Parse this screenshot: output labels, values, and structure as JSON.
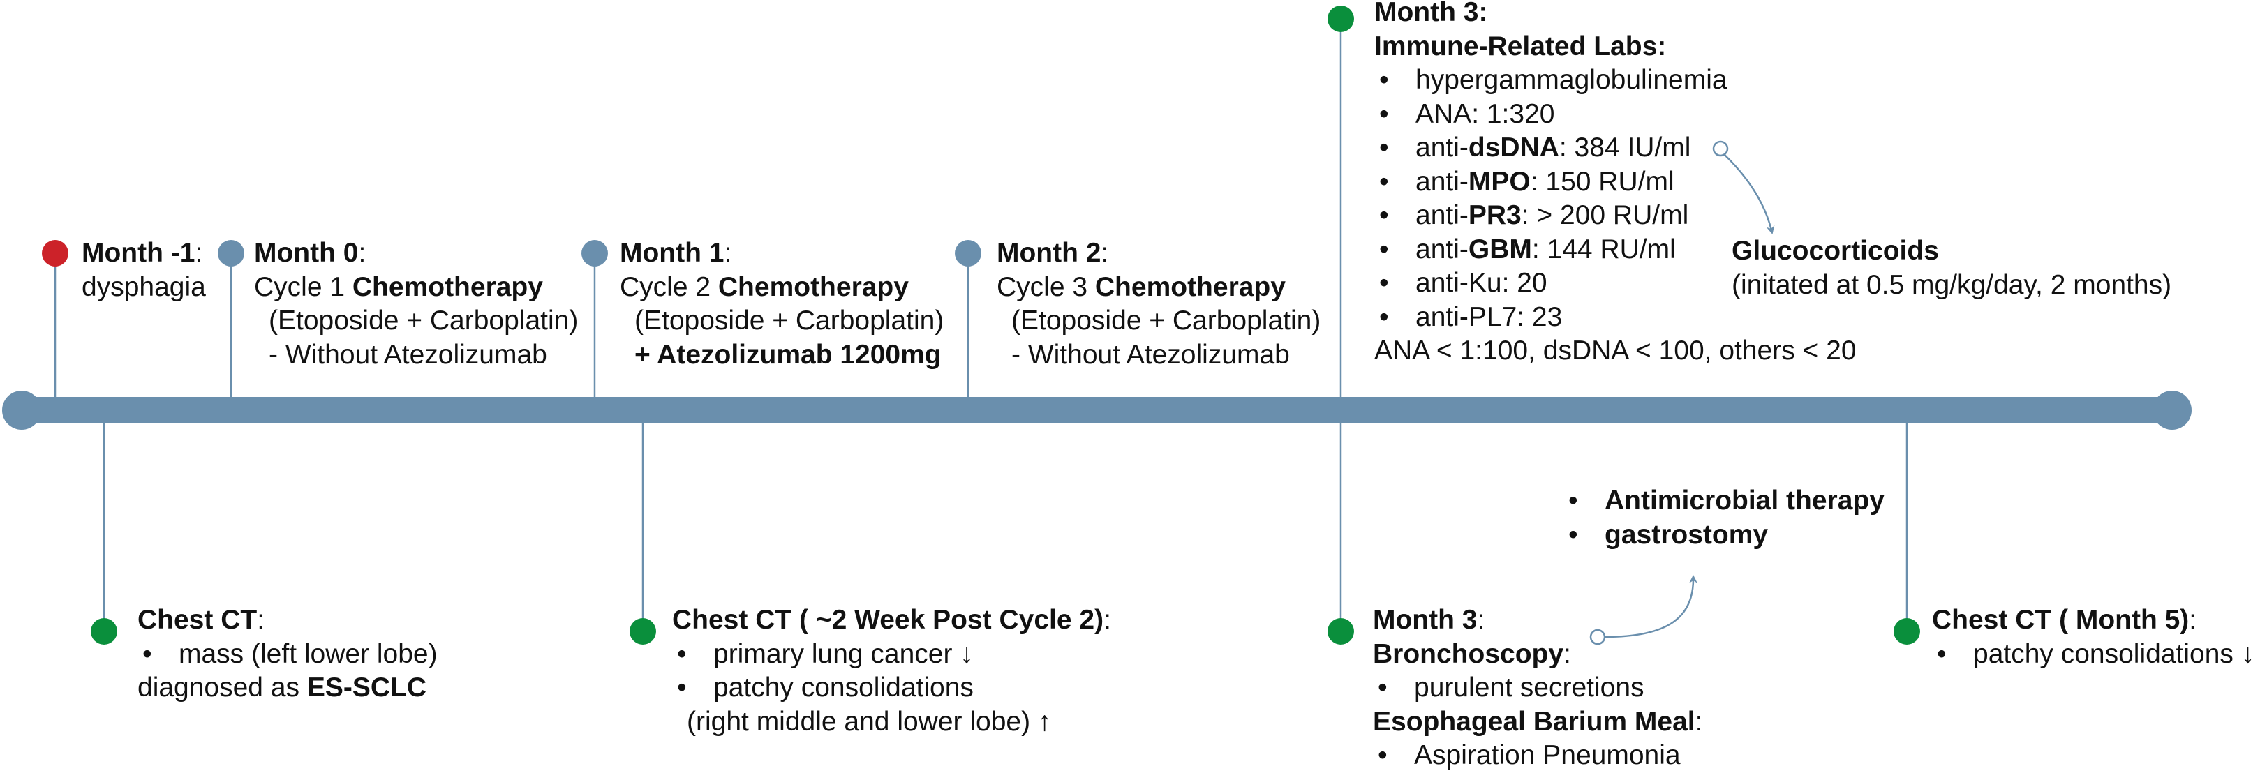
{
  "colors": {
    "timeline": "#6a8fad",
    "marker_red": "#cc2229",
    "marker_blue": "#6a8fad",
    "marker_green": "#0a8f3c",
    "text": "#111111"
  },
  "events": [
    {
      "id": "month-minus-1",
      "side": "top",
      "marker": "red",
      "lines": [
        {
          "segs": [
            [
              "Month -1",
              true
            ],
            [
              ":",
              false
            ]
          ]
        },
        {
          "segs": [
            [
              "dysphagia",
              false
            ]
          ]
        }
      ]
    },
    {
      "id": "month-0",
      "side": "top",
      "marker": "blue",
      "lines": [
        {
          "segs": [
            [
              "Month 0",
              true
            ],
            [
              ":",
              false
            ]
          ]
        },
        {
          "segs": [
            [
              "Cycle 1 ",
              false
            ],
            [
              "Chemotherapy",
              true
            ]
          ]
        },
        {
          "indent": true,
          "segs": [
            [
              "(Etoposide + Carboplatin)",
              false
            ]
          ]
        },
        {
          "indent": true,
          "segs": [
            [
              "- Without Atezolizumab",
              false
            ]
          ]
        }
      ]
    },
    {
      "id": "month-1",
      "side": "top",
      "marker": "blue",
      "lines": [
        {
          "segs": [
            [
              "Month 1",
              true
            ],
            [
              ":",
              false
            ]
          ]
        },
        {
          "segs": [
            [
              "Cycle 2 ",
              false
            ],
            [
              "Chemotherapy",
              true
            ]
          ]
        },
        {
          "indent": true,
          "segs": [
            [
              "(Etoposide + Carboplatin)",
              false
            ]
          ]
        },
        {
          "indent": true,
          "segs": [
            [
              "+ Atezolizumab 1200mg",
              true
            ]
          ]
        }
      ]
    },
    {
      "id": "month-2",
      "side": "top",
      "marker": "blue",
      "lines": [
        {
          "segs": [
            [
              "Month 2",
              true
            ],
            [
              ":",
              false
            ]
          ]
        },
        {
          "segs": [
            [
              "Cycle 3 ",
              false
            ],
            [
              "Chemotherapy",
              true
            ]
          ]
        },
        {
          "indent": true,
          "segs": [
            [
              "(Etoposide + Carboplatin)",
              false
            ]
          ]
        },
        {
          "indent": true,
          "segs": [
            [
              "- Without Atezolizumab",
              false
            ]
          ]
        }
      ]
    },
    {
      "id": "month-3-labs",
      "side": "top",
      "marker": "green",
      "lines": [
        {
          "segs": [
            [
              "Month 3:",
              true
            ]
          ]
        },
        {
          "segs": [
            [
              "Immune-Related Labs:",
              true
            ]
          ]
        },
        {
          "bullet": true,
          "segs": [
            [
              "hypergammaglobulinemia",
              false
            ]
          ]
        },
        {
          "bullet": true,
          "segs": [
            [
              "ANA: 1:320",
              false
            ]
          ]
        },
        {
          "bullet": true,
          "segs": [
            [
              "anti-",
              false
            ],
            [
              "dsDNA",
              true
            ],
            [
              ": 384 IU/ml",
              false
            ]
          ]
        },
        {
          "bullet": true,
          "segs": [
            [
              "anti-",
              false
            ],
            [
              "MPO",
              true
            ],
            [
              ": 150 RU/ml",
              false
            ]
          ]
        },
        {
          "bullet": true,
          "segs": [
            [
              "anti-",
              false
            ],
            [
              "PR3",
              true
            ],
            [
              ": > 200 RU/ml",
              false
            ]
          ]
        },
        {
          "bullet": true,
          "segs": [
            [
              "anti-",
              false
            ],
            [
              "GBM",
              true
            ],
            [
              ":  144 RU/ml",
              false
            ]
          ]
        },
        {
          "bullet": true,
          "segs": [
            [
              "anti-Ku: 20",
              false
            ]
          ]
        },
        {
          "bullet": true,
          "segs": [
            [
              "anti-PL7: 23",
              false
            ]
          ]
        },
        {
          "segs": [
            [
              "ANA < 1:100, dsDNA < 100, others < 20",
              false
            ]
          ]
        }
      ]
    },
    {
      "id": "chest-ct-initial",
      "side": "bottom",
      "marker": "green",
      "lines": [
        {
          "segs": [
            [
              "Chest CT",
              true
            ],
            [
              ":",
              false
            ]
          ]
        },
        {
          "bullet": true,
          "segs": [
            [
              "mass (left lower lobe)",
              false
            ]
          ]
        },
        {
          "segs": [
            [
              "diagnosed as ",
              false
            ],
            [
              "ES-SCLC",
              true
            ]
          ]
        }
      ]
    },
    {
      "id": "chest-ct-post-cycle-2",
      "side": "bottom",
      "marker": "green",
      "lines": [
        {
          "segs": [
            [
              "Chest CT ( ~2 Week Post Cycle 2)",
              true
            ],
            [
              ":",
              false
            ]
          ]
        },
        {
          "bullet": true,
          "segs": [
            [
              "primary lung cancer ↓",
              false
            ]
          ]
        },
        {
          "bullet": true,
          "segs": [
            [
              "patchy consolidations",
              false
            ]
          ]
        },
        {
          "indent": true,
          "segs": [
            [
              "(right middle and lower lobe) ↑",
              false
            ]
          ]
        }
      ]
    },
    {
      "id": "month-3-bronchoscopy",
      "side": "bottom",
      "marker": "green",
      "lines": [
        {
          "segs": [
            [
              "Month 3",
              true
            ],
            [
              ":",
              false
            ]
          ]
        },
        {
          "segs": [
            [
              "Bronchoscopy",
              true
            ],
            [
              ":",
              false
            ]
          ]
        },
        {
          "bullet": true,
          "segs": [
            [
              "purulent secretions",
              false
            ]
          ]
        },
        {
          "segs": [
            [
              "Esophageal Barium Meal",
              true
            ],
            [
              ":",
              false
            ]
          ]
        },
        {
          "bullet": true,
          "segs": [
            [
              "Aspiration Pneumonia",
              false
            ]
          ]
        }
      ]
    },
    {
      "id": "chest-ct-month-5",
      "side": "bottom",
      "marker": "green",
      "lines": [
        {
          "segs": [
            [
              "Chest CT ( Month 5)",
              true
            ],
            [
              ":",
              false
            ]
          ]
        },
        {
          "bullet": true,
          "segs": [
            [
              "patchy consolidations  ↓",
              false
            ]
          ]
        }
      ]
    }
  ],
  "annotations": [
    {
      "id": "glucocorticoids",
      "lines": [
        {
          "segs": [
            [
              "Glucocorticoids",
              true
            ]
          ]
        },
        {
          "segs": [
            [
              "(initated at 0.5 mg/kg/day, 2 months)",
              false
            ]
          ]
        }
      ]
    },
    {
      "id": "antimicrobial-gastrostomy",
      "lines": [
        {
          "bullet": true,
          "segs": [
            [
              "Antimicrobial therapy",
              true
            ]
          ]
        },
        {
          "bullet": true,
          "segs": [
            [
              "gastrostomy",
              true
            ]
          ]
        }
      ]
    }
  ],
  "bullet_char": "•"
}
